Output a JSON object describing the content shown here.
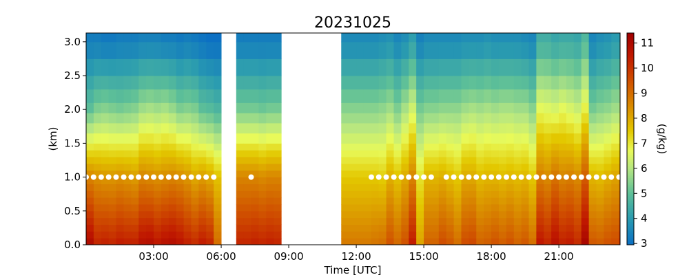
{
  "chart_data": {
    "type": "heatmap",
    "title": "20231025",
    "xlabel": "Time [UTC]",
    "ylabel": "(km)",
    "colorbar_label": "(g/kg)",
    "xlim_hours": [
      0,
      23.72
    ],
    "ylim": [
      0,
      3.13
    ],
    "clim": [
      2.95,
      11.4
    ],
    "xticks": [
      {
        "value": 3,
        "label": "03:00"
      },
      {
        "value": 6,
        "label": "06:00"
      },
      {
        "value": 9,
        "label": "09:00"
      },
      {
        "value": 12,
        "label": "12:00"
      },
      {
        "value": 15,
        "label": "15:00"
      },
      {
        "value": 18,
        "label": "18:00"
      },
      {
        "value": 21,
        "label": "21:00"
      }
    ],
    "yticks": [
      {
        "value": 0,
        "label": "0.0"
      },
      {
        "value": 0.5,
        "label": "0.5"
      },
      {
        "value": 1.0,
        "label": "1.0"
      },
      {
        "value": 1.5,
        "label": "1.5"
      },
      {
        "value": 2.0,
        "label": "2.0"
      },
      {
        "value": 2.5,
        "label": "2.5"
      },
      {
        "value": 3.0,
        "label": "3.0"
      }
    ],
    "cticks": [
      {
        "value": 3,
        "label": "3"
      },
      {
        "value": 4,
        "label": "4"
      },
      {
        "value": 5,
        "label": "5"
      },
      {
        "value": 6,
        "label": "6"
      },
      {
        "value": 7,
        "label": "7"
      },
      {
        "value": 8,
        "label": "8"
      },
      {
        "value": 9,
        "label": "9"
      },
      {
        "value": 10,
        "label": "10"
      },
      {
        "value": 11,
        "label": "11"
      }
    ],
    "colormap": [
      [
        2.95,
        "#0a6ec4"
      ],
      [
        4,
        "#2a9bb0"
      ],
      [
        5,
        "#5dbf98"
      ],
      [
        6,
        "#b5e682"
      ],
      [
        6.7,
        "#e8fa5a"
      ],
      [
        7.5,
        "#e3c800"
      ],
      [
        8.5,
        "#d98a00"
      ],
      [
        9.5,
        "#d05000"
      ],
      [
        10.5,
        "#c01800"
      ],
      [
        11.4,
        "#a00000"
      ]
    ],
    "time_step_hours": 0.3333,
    "profile_levels_km": [
      0,
      1,
      2,
      3
    ],
    "height_bin_edges_km": [
      0,
      0.1,
      0.2,
      0.3,
      0.4,
      0.5,
      0.6,
      0.7,
      0.8,
      0.9,
      1.0,
      1.1,
      1.2,
      1.3,
      1.4,
      1.5,
      1.65,
      1.8,
      1.95,
      2.1,
      2.3,
      2.5,
      2.75,
      3.0,
      3.13
    ],
    "mixing_ratio_profiles": [
      [
        11.0,
        8.6,
        5.0,
        3.3
      ],
      [
        10.3,
        8.4,
        5.4,
        3.3
      ],
      [
        10.4,
        8.3,
        5.5,
        3.2
      ],
      [
        10.3,
        8.3,
        5.4,
        3.2
      ],
      [
        10.5,
        8.4,
        5.3,
        3.3
      ],
      [
        10.4,
        8.3,
        5.4,
        3.3
      ],
      [
        10.4,
        8.2,
        5.5,
        3.3
      ],
      [
        10.8,
        8.6,
        5.8,
        3.4
      ],
      [
        10.9,
        8.5,
        5.9,
        3.4
      ],
      [
        10.6,
        8.4,
        5.8,
        3.4
      ],
      [
        10.8,
        8.5,
        5.9,
        3.3
      ],
      [
        10.9,
        8.6,
        5.7,
        3.3
      ],
      [
        10.7,
        8.5,
        5.4,
        3.2
      ],
      [
        10.4,
        8.3,
        5.5,
        3.3
      ],
      [
        10.2,
        8.0,
        5.4,
        3.2
      ],
      [
        10.5,
        8.2,
        5.0,
        3.1
      ],
      [
        10.3,
        8.0,
        4.9,
        3.0
      ],
      [
        9.0,
        7.6,
        4.7,
        3.0
      ],
      null,
      null,
      [
        10.3,
        8.6,
        5.3,
        3.3
      ],
      [
        10.3,
        8.6,
        5.3,
        3.3
      ],
      [
        10.4,
        8.6,
        5.3,
        3.3
      ],
      [
        10.3,
        8.5,
        5.2,
        3.3
      ],
      [
        10.4,
        8.6,
        5.3,
        3.3
      ],
      [
        10.3,
        8.6,
        5.3,
        3.3
      ],
      null,
      null,
      null,
      null,
      null,
      null,
      null,
      null,
      [
        8.8,
        7.5,
        5.5,
        3.6
      ],
      [
        8.8,
        7.5,
        5.5,
        3.6
      ],
      [
        8.8,
        7.5,
        5.5,
        3.6
      ],
      [
        8.8,
        7.5,
        5.5,
        3.6
      ],
      [
        8.9,
        7.5,
        5.5,
        3.6
      ],
      [
        9.0,
        7.4,
        5.6,
        3.7
      ],
      [
        9.5,
        7.9,
        5.8,
        3.8
      ],
      [
        9.1,
        7.6,
        5.4,
        3.5
      ],
      [
        9.5,
        8.0,
        5.9,
        3.7
      ],
      [
        10.5,
        8.6,
        6.4,
        4.1
      ],
      [
        8.1,
        7.1,
        5.3,
        3.4
      ],
      [
        9.2,
        7.8,
        5.5,
        3.6
      ],
      [
        9.2,
        7.8,
        5.5,
        3.6
      ],
      [
        9.6,
        7.9,
        5.6,
        3.6
      ],
      [
        9.4,
        7.7,
        5.6,
        3.6
      ],
      [
        9.0,
        7.5,
        5.6,
        3.6
      ],
      [
        9.6,
        8.0,
        5.8,
        3.7
      ],
      [
        9.7,
        8.0,
        5.9,
        3.7
      ],
      [
        9.2,
        7.7,
        5.8,
        3.7
      ],
      [
        9.3,
        7.8,
        5.9,
        3.8
      ],
      [
        9.5,
        7.8,
        5.8,
        3.7
      ],
      [
        9.3,
        7.7,
        5.9,
        3.7
      ],
      [
        9.5,
        7.8,
        5.9,
        3.7
      ],
      [
        9.2,
        7.7,
        5.8,
        3.7
      ],
      [
        9.4,
        7.8,
        5.8,
        3.6
      ],
      [
        9.0,
        7.5,
        5.5,
        3.5
      ],
      [
        10.6,
        8.7,
        6.7,
        4.5
      ],
      [
        10.3,
        8.5,
        6.6,
        4.5
      ],
      [
        10.8,
        8.9,
        6.5,
        4.3
      ],
      [
        10.4,
        8.6,
        6.7,
        4.4
      ],
      [
        10.5,
        8.7,
        6.5,
        4.4
      ],
      [
        10.2,
        8.5,
        6.3,
        4.3
      ],
      [
        11.2,
        9.3,
        6.9,
        4.8
      ],
      [
        9.4,
        7.8,
        5.3,
        3.5
      ],
      [
        9.3,
        7.7,
        5.5,
        3.7
      ],
      [
        9.5,
        7.9,
        5.6,
        3.8
      ],
      [
        9.6,
        8.1,
        5.8,
        4.0
      ],
      [
        10.2,
        8.5,
        6.0,
        4.0
      ]
    ],
    "marker_height_km": 1.0,
    "marker_times_hours": [
      0,
      0.33,
      0.67,
      1,
      1.33,
      1.67,
      2,
      2.33,
      2.67,
      3,
      3.33,
      3.67,
      4,
      4.33,
      4.67,
      5,
      5.33,
      5.67,
      7.33,
      12.67,
      13,
      13.33,
      13.67,
      14,
      14.33,
      14.67,
      15,
      15.33,
      16,
      16.33,
      16.67,
      17,
      17.33,
      17.67,
      18,
      18.33,
      18.67,
      19,
      19.33,
      19.67,
      20,
      20.33,
      20.67,
      21,
      21.33,
      21.67,
      22,
      22.33,
      22.67,
      23,
      23.33,
      23.67
    ]
  }
}
